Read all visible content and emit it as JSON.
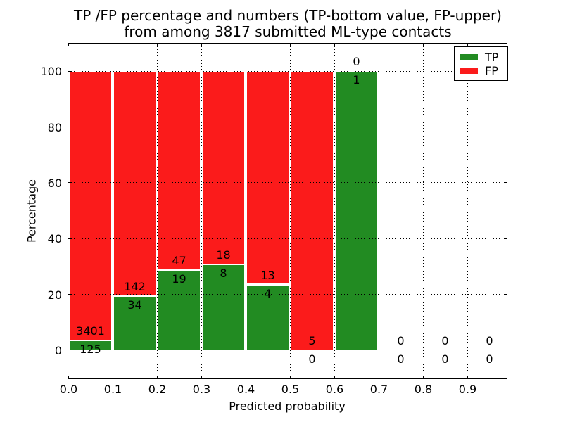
{
  "title": {
    "line1": "TP /FP percentage and numbers (TP-bottom value, FP-upper)",
    "line2": "from among 3817 submitted ML-type contacts"
  },
  "chart_data": {
    "type": "bar",
    "subtype": "stacked-percentage-histogram",
    "title": "TP /FP percentage and numbers (TP-bottom value, FP-upper)\nfrom among 3817 submitted ML-type contacts",
    "xlabel": "Predicted probability",
    "ylabel": "Percentage",
    "total_contacts": 3817,
    "xlim": [
      0.0,
      0.99
    ],
    "ylim": [
      -10,
      110
    ],
    "x_tick_labels": [
      "0.0",
      "0.1",
      "0.2",
      "0.3",
      "0.4",
      "0.5",
      "0.6",
      "0.7",
      "0.8",
      "0.9"
    ],
    "y_tick_values": [
      0,
      20,
      40,
      60,
      80,
      100
    ],
    "grid": "dotted, drawn on top of bars",
    "annotation_note": "each bin labeled with FP count above boundary and TP count below boundary",
    "bins": [
      {
        "x_start": 0.0,
        "x_end": 0.1,
        "tp": 125,
        "fp": 3401
      },
      {
        "x_start": 0.1,
        "x_end": 0.2,
        "tp": 34,
        "fp": 142
      },
      {
        "x_start": 0.2,
        "x_end": 0.3,
        "tp": 19,
        "fp": 47
      },
      {
        "x_start": 0.3,
        "x_end": 0.4,
        "tp": 8,
        "fp": 18
      },
      {
        "x_start": 0.4,
        "x_end": 0.5,
        "tp": 4,
        "fp": 13
      },
      {
        "x_start": 0.5,
        "x_end": 0.6,
        "tp": 0,
        "fp": 5
      },
      {
        "x_start": 0.6,
        "x_end": 0.7,
        "tp": 1,
        "fp": 0
      },
      {
        "x_start": 0.7,
        "x_end": 0.8,
        "tp": 0,
        "fp": 0
      },
      {
        "x_start": 0.8,
        "x_end": 0.9,
        "tp": 0,
        "fp": 0
      },
      {
        "x_start": 0.9,
        "x_end": 1.0,
        "tp": 0,
        "fp": 0
      }
    ],
    "colors": {
      "tp": "#228b22",
      "fp": "#fb1b1b",
      "grid": "#000000",
      "text": "#000000",
      "background": "#ffffff"
    },
    "legend": {
      "position": "upper-right",
      "entries": [
        {
          "label": "TP",
          "color": "#228b22"
        },
        {
          "label": "FP",
          "color": "#fb1b1b"
        }
      ]
    }
  }
}
